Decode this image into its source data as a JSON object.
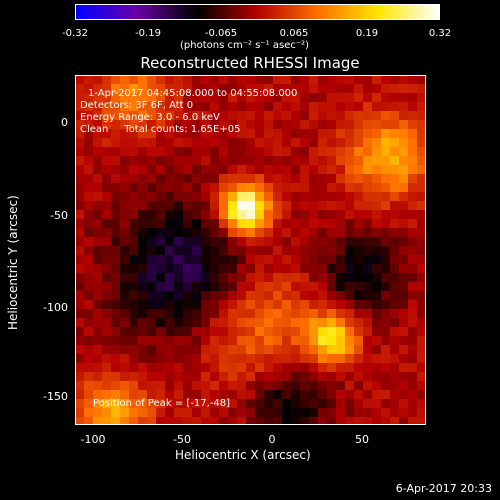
{
  "colorbar": {
    "ticks": [
      "-0.32",
      "-0.19",
      "-0.065",
      "0.065",
      "0.19",
      "0.32"
    ],
    "units": "(photons cm⁻² s⁻¹ asec⁻²)",
    "colors": [
      "#0000ff",
      "#6a00a8",
      "#000000",
      "#b40000",
      "#ff7000",
      "#ffe600",
      "#ffffff"
    ]
  },
  "title": "Reconstructed RHESSI Image",
  "annotations": {
    "time": "1-Apr-2017 04:45:08.000 to 04:55:08.000",
    "detectors": "Detectors: 3F 6F, Att 0",
    "energy": "Energy Range: 3.0 - 6.0 keV",
    "clean": "Clean     Total counts: 1.65E+05",
    "peak": "Position of Peak = [-17,-48]"
  },
  "axes": {
    "xlabel": "Heliocentric X (arcsec)",
    "ylabel": "Heliocentric Y (arcsec)",
    "xticks": [
      "-100",
      "-50",
      "0",
      "50"
    ],
    "yticks": [
      "0",
      "-50",
      "-100",
      "-150"
    ],
    "xrange": [
      -111,
      84
    ],
    "yrange": [
      -165,
      22
    ]
  },
  "timestamp": "6-Apr-2017 20:33"
}
